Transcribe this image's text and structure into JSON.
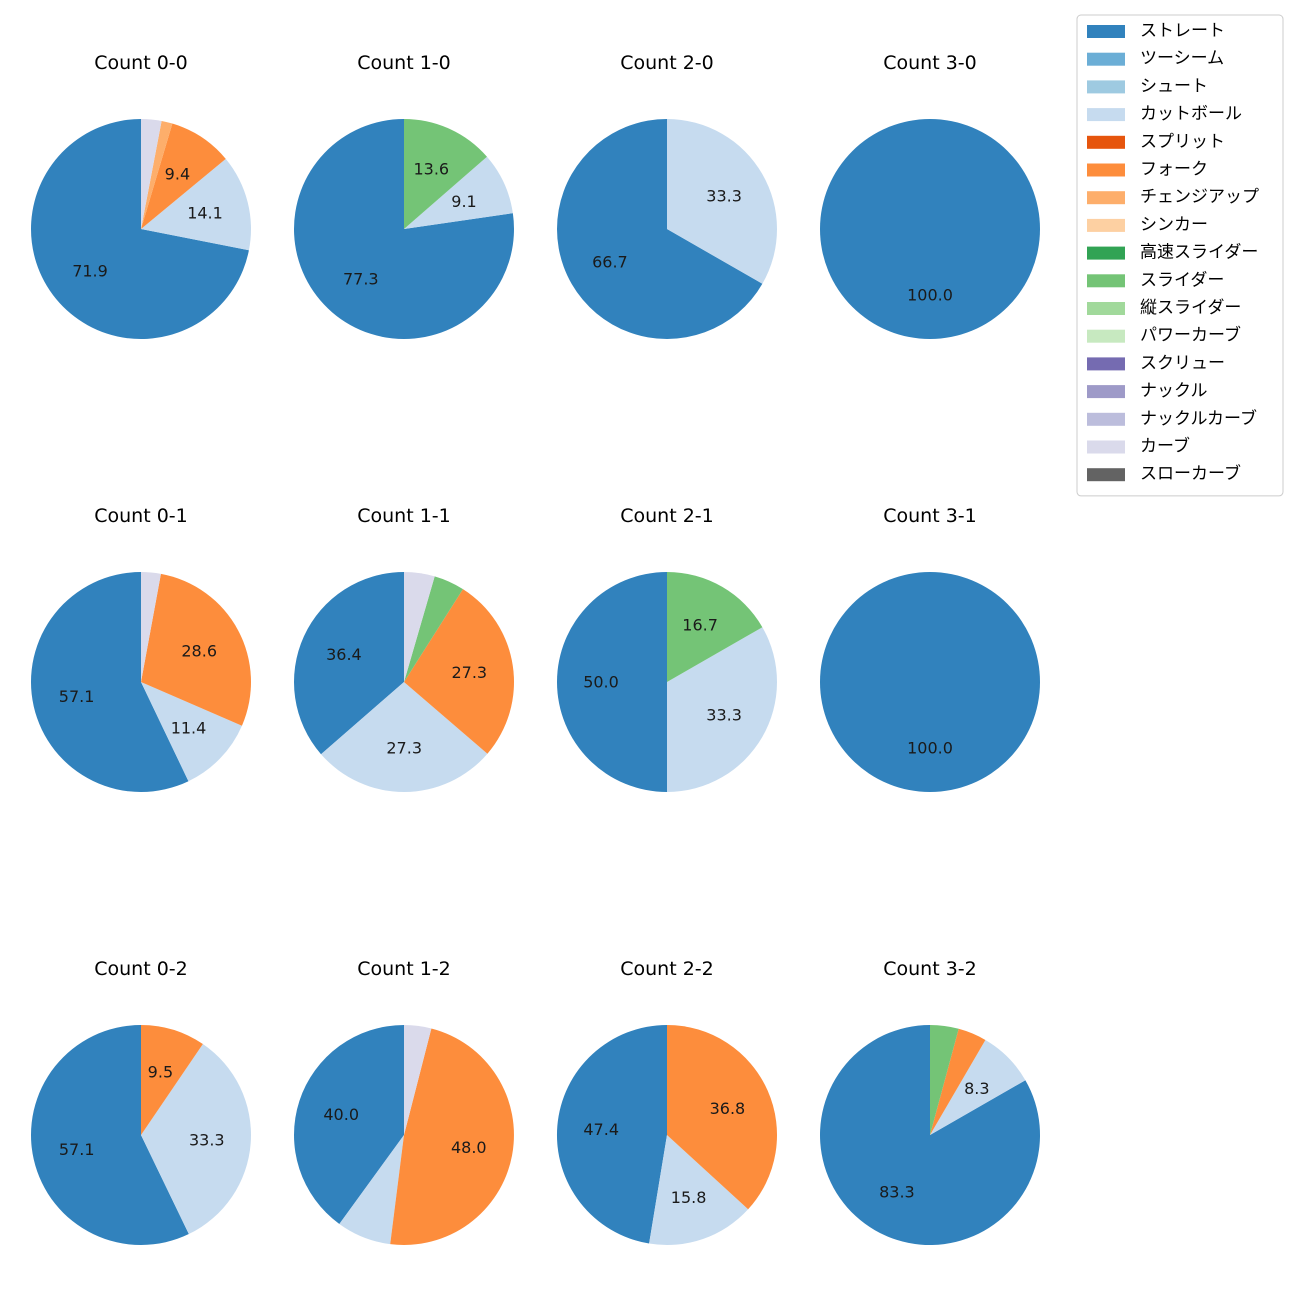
{
  "chart_data": {
    "type": "pie",
    "title": "",
    "legend_position": "top-right",
    "pitch_types": [
      {
        "name": "ストレート",
        "color": "#3182bd"
      },
      {
        "name": "ツーシーム",
        "color": "#6baed6"
      },
      {
        "name": "シュート",
        "color": "#9ecae1"
      },
      {
        "name": "カットボール",
        "color": "#c6dbef"
      },
      {
        "name": "スプリット",
        "color": "#e6550d"
      },
      {
        "name": "フォーク",
        "color": "#fd8d3c"
      },
      {
        "name": "チェンジアップ",
        "color": "#fdae6b"
      },
      {
        "name": "シンカー",
        "color": "#fdd0a2"
      },
      {
        "name": "高速スライダー",
        "color": "#31a354"
      },
      {
        "name": "スライダー",
        "color": "#74c476"
      },
      {
        "name": "縦スライダー",
        "color": "#a1d99b"
      },
      {
        "name": "パワーカーブ",
        "color": "#c7e9c0"
      },
      {
        "name": "スクリュー",
        "color": "#756bb1"
      },
      {
        "name": "ナックル",
        "color": "#9e9ac8"
      },
      {
        "name": "ナックルカーブ",
        "color": "#bcbddc"
      },
      {
        "name": "カーブ",
        "color": "#dadaeb"
      },
      {
        "name": "スローカーブ",
        "color": "#636363"
      }
    ],
    "subplots": [
      {
        "title": "Count 0-0",
        "slices": [
          {
            "type": "ストレート",
            "value": 71.9,
            "label": "71.9"
          },
          {
            "type": "カットボール",
            "value": 14.1,
            "label": "14.1"
          },
          {
            "type": "フォーク",
            "value": 9.4,
            "label": "9.4"
          },
          {
            "type": "チェンジアップ",
            "value": 1.6,
            "label": ""
          },
          {
            "type": "カーブ",
            "value": 3.0,
            "label": ""
          }
        ]
      },
      {
        "title": "Count 1-0",
        "slices": [
          {
            "type": "ストレート",
            "value": 77.3,
            "label": "77.3"
          },
          {
            "type": "カットボール",
            "value": 9.1,
            "label": "9.1"
          },
          {
            "type": "スライダー",
            "value": 13.6,
            "label": "13.6"
          }
        ]
      },
      {
        "title": "Count 2-0",
        "slices": [
          {
            "type": "ストレート",
            "value": 66.7,
            "label": "66.7"
          },
          {
            "type": "カットボール",
            "value": 33.3,
            "label": "33.3"
          }
        ]
      },
      {
        "title": "Count 3-0",
        "slices": [
          {
            "type": "ストレート",
            "value": 100.0,
            "label": "100.0"
          }
        ]
      },
      {
        "title": "Count 0-1",
        "slices": [
          {
            "type": "ストレート",
            "value": 57.1,
            "label": "57.1"
          },
          {
            "type": "カットボール",
            "value": 11.4,
            "label": "11.4"
          },
          {
            "type": "フォーク",
            "value": 28.6,
            "label": "28.6"
          },
          {
            "type": "カーブ",
            "value": 2.9,
            "label": ""
          }
        ]
      },
      {
        "title": "Count 1-1",
        "slices": [
          {
            "type": "ストレート",
            "value": 36.4,
            "label": "36.4"
          },
          {
            "type": "カットボール",
            "value": 27.3,
            "label": "27.3"
          },
          {
            "type": "フォーク",
            "value": 27.3,
            "label": "27.3"
          },
          {
            "type": "スライダー",
            "value": 4.5,
            "label": ""
          },
          {
            "type": "カーブ",
            "value": 4.5,
            "label": ""
          }
        ]
      },
      {
        "title": "Count 2-1",
        "slices": [
          {
            "type": "ストレート",
            "value": 50.0,
            "label": "50.0"
          },
          {
            "type": "カットボール",
            "value": 33.3,
            "label": "33.3"
          },
          {
            "type": "スライダー",
            "value": 16.7,
            "label": "16.7"
          }
        ]
      },
      {
        "title": "Count 3-1",
        "slices": [
          {
            "type": "ストレート",
            "value": 100.0,
            "label": "100.0"
          }
        ]
      },
      {
        "title": "Count 0-2",
        "slices": [
          {
            "type": "ストレート",
            "value": 57.1,
            "label": "57.1"
          },
          {
            "type": "カットボール",
            "value": 33.3,
            "label": "33.3"
          },
          {
            "type": "フォーク",
            "value": 9.5,
            "label": "9.5"
          }
        ]
      },
      {
        "title": "Count 1-2",
        "slices": [
          {
            "type": "ストレート",
            "value": 40.0,
            "label": "40.0"
          },
          {
            "type": "カットボール",
            "value": 8.0,
            "label": ""
          },
          {
            "type": "フォーク",
            "value": 48.0,
            "label": "48.0"
          },
          {
            "type": "カーブ",
            "value": 4.0,
            "label": ""
          }
        ]
      },
      {
        "title": "Count 2-2",
        "slices": [
          {
            "type": "ストレート",
            "value": 47.4,
            "label": "47.4"
          },
          {
            "type": "カットボール",
            "value": 15.8,
            "label": "15.8"
          },
          {
            "type": "フォーク",
            "value": 36.8,
            "label": "36.8"
          }
        ]
      },
      {
        "title": "Count 3-2",
        "slices": [
          {
            "type": "ストレート",
            "value": 83.3,
            "label": "83.3"
          },
          {
            "type": "カットボール",
            "value": 8.3,
            "label": "8.3"
          },
          {
            "type": "フォーク",
            "value": 4.2,
            "label": ""
          },
          {
            "type": "スライダー",
            "value": 4.2,
            "label": ""
          }
        ]
      }
    ]
  }
}
